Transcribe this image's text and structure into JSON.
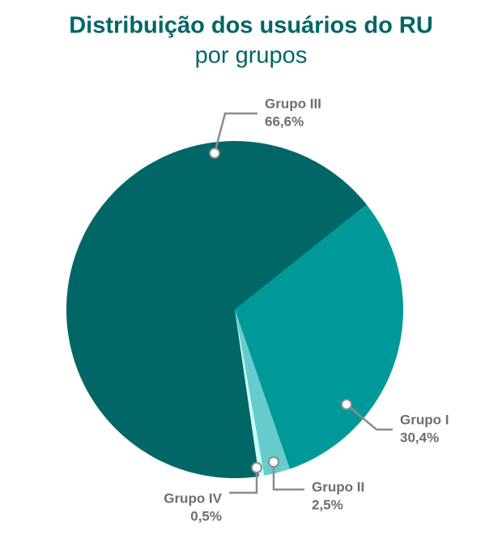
{
  "chart_data": {
    "type": "pie",
    "title": "Distribuição dos usuários do RU",
    "subtitle": "por grupos",
    "categories": [
      "Grupo I",
      "Grupo II",
      "Grupo IV",
      "Grupo III"
    ],
    "values": [
      30.4,
      2.5,
      0.5,
      66.6
    ],
    "value_labels": [
      "30,4%",
      "2,5%",
      "0,5%",
      "66,6%"
    ],
    "colors": [
      "#009999",
      "#66cccc",
      "#ccffff",
      "#006666"
    ]
  }
}
